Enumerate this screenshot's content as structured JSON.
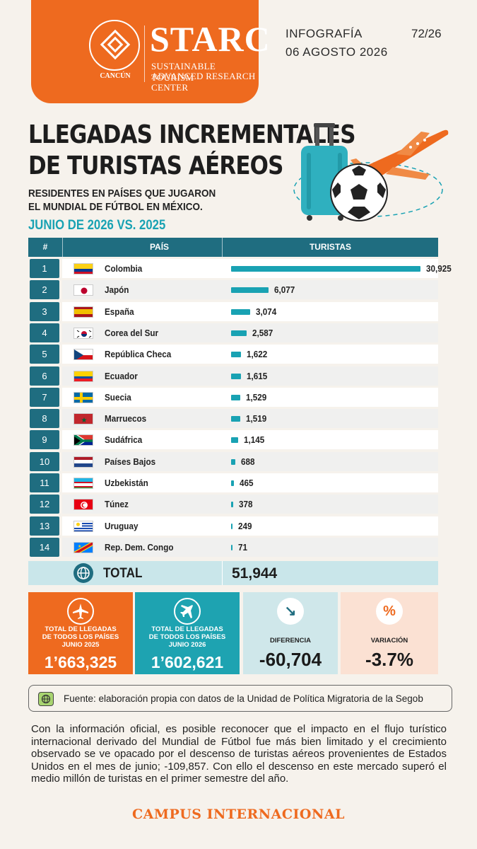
{
  "header": {
    "brand": "STARC",
    "brand_sub1": "SUSTAINABLE TOURISM",
    "brand_sub2": "ADVANCED RESEARCH CENTER",
    "university": "CANCÚN",
    "label": "INFOGRAFÍA",
    "number": "72/26",
    "date": "06 AGOSTO 2026"
  },
  "title": {
    "line1": "LLEGADAS INCREMENTALES",
    "line2": "DE TURISTAS AÉREOS",
    "subtitle1": "RESIDENTES EN PAÍSES QUE JUGARON",
    "subtitle2": "EL MUNDIAL DE FÚTBOL EN MÉXICO.",
    "period": "JUNIO DE 2026 VS. 2025"
  },
  "table": {
    "col_num": "#",
    "col_country": "PAÍS",
    "col_tourists": "TURISTAS",
    "total_label": "TOTAL",
    "total_value": "51,944"
  },
  "chart_data": {
    "type": "bar",
    "orientation": "horizontal",
    "categories": [
      "Colombia",
      "Japón",
      "España",
      "Corea del Sur",
      "República Checa",
      "Ecuador",
      "Suecia",
      "Marruecos",
      "Sudáfrica",
      "Países Bajos",
      "Uzbekistán",
      "Túnez",
      "Uruguay",
      "Rep. Dem. Congo"
    ],
    "values": [
      30925,
      6077,
      3074,
      2587,
      1622,
      1615,
      1529,
      1519,
      1145,
      688,
      465,
      378,
      249,
      71
    ],
    "value_labels": [
      "30,925",
      "6,077",
      "3,074",
      "2,587",
      "1,622",
      "1,615",
      "1,529",
      "1,519",
      "1,145",
      "688",
      "465",
      "378",
      "249",
      "71"
    ],
    "ranks": [
      "1",
      "2",
      "3",
      "4",
      "5",
      "6",
      "7",
      "8",
      "9",
      "10",
      "11",
      "12",
      "13",
      "14"
    ],
    "xlabel": "TURISTAS",
    "ylabel": "PAÍS",
    "bar_color": "#19a2b3"
  },
  "cards": {
    "c1_label1": "TOTAL DE LLEGADAS",
    "c1_label2": "DE TODOS LOS PAÍSES",
    "c1_label3": "JUNIO 2025",
    "c1_value": "1’663,325",
    "c2_label1": "TOTAL DE LLEGADAS",
    "c2_label2": "DE TODOS LOS PAÍSES",
    "c2_label3": "JUNIO 2026",
    "c2_value": "1’602,621",
    "c3_label": "DIFERENCIA",
    "c3_icon": "↘",
    "c3_value": "-60,704",
    "c4_label": "VARIACIÓN",
    "c4_icon": "%",
    "c4_value": "-3.7%"
  },
  "source": "Fuente: elaboración propia con datos de la Unidad de Política Migratoria de la Segob",
  "paragraph": "Con la información oficial, es posible reconocer que el impacto en el flujo turístico internacional derivado del Mundial de Fútbol fue más bien limitado y el crecimiento observado se ve opacado por el descenso de turistas aéreos provenientes de Estados Unidos en el mes de junio; -109,857. Con ello el descenso en este mercado superó el medio millón de turistas en el primer semestre del año.",
  "footer": "CAMPUS INTERNACIONAL",
  "colors": {
    "orange": "#ee6a1f",
    "teal": "#19a2b3",
    "dark_teal": "#1f6d80",
    "background": "#f6f2ec"
  }
}
